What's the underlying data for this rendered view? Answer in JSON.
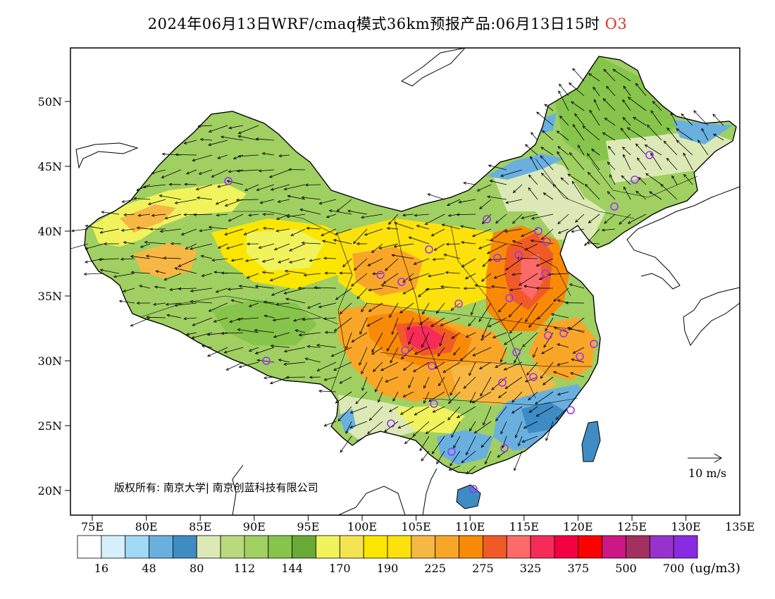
{
  "title": {
    "main": "2024年06月13日WRF/cmaq模式36km预报产品:06月13日15时",
    "species": "O3"
  },
  "axes": {
    "lat_labels": [
      "50N",
      "45N",
      "40N",
      "35N",
      "30N",
      "25N",
      "20N"
    ],
    "lon_labels": [
      "75E",
      "80E",
      "85E",
      "90E",
      "95E",
      "100E",
      "105E",
      "110E",
      "115E",
      "120E",
      "125E",
      "130E",
      "135E"
    ]
  },
  "wind_legend": {
    "label": "10 m/s"
  },
  "copyright": "版权所有: 南京大学| 南京创蓝科技有限公司",
  "colorbar": {
    "unit": "(ug/m3)",
    "colors": [
      "#ffffff",
      "#d6f0fb",
      "#9fd9f5",
      "#6ab0df",
      "#3f8cc4",
      "#dce9b6",
      "#b9d97e",
      "#a0cf62",
      "#86c44b",
      "#69a935",
      "#f0f35c",
      "#f5e451",
      "#fbe600",
      "#fde10c",
      "#f7b744",
      "#f9a628",
      "#f98a08",
      "#f05a27",
      "#fe6a6a",
      "#f62b57",
      "#f40042",
      "#fd0000",
      "#cc1784",
      "#a43060",
      "#9932cc",
      "#8a2be2"
    ],
    "tick_labels": [
      "16",
      "48",
      "80",
      "112",
      "144",
      "170",
      "190",
      "225",
      "275",
      "325",
      "375",
      "500",
      "700"
    ]
  },
  "stations_color": "#9b30ff"
}
